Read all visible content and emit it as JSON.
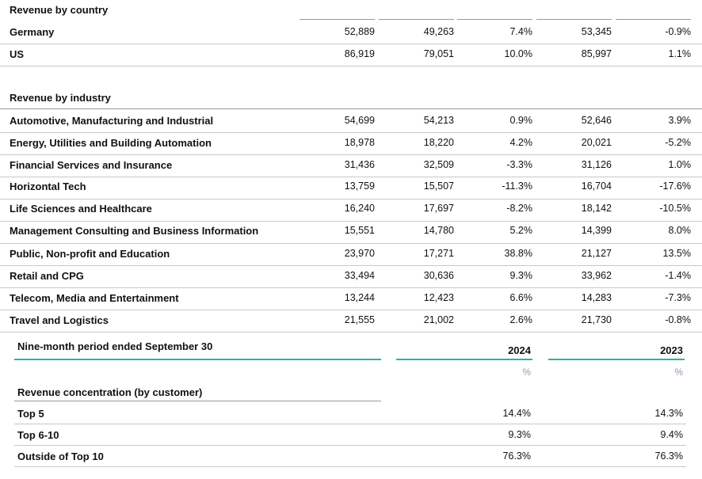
{
  "country": {
    "title": "Revenue by country",
    "rows": [
      {
        "label": "Germany",
        "v": [
          "52,889",
          "49,263",
          "7.4%",
          "53,345",
          "-0.9%"
        ]
      },
      {
        "label": "US",
        "v": [
          "86,919",
          "79,051",
          "10.0%",
          "85,997",
          "1.1%"
        ]
      }
    ]
  },
  "industry": {
    "title": "Revenue by industry",
    "rows": [
      {
        "label": "Automotive, Manufacturing and Industrial",
        "v": [
          "54,699",
          "54,213",
          "0.9%",
          "52,646",
          "3.9%"
        ]
      },
      {
        "label": "Energy, Utilities and Building Automation",
        "v": [
          "18,978",
          "18,220",
          "4.2%",
          "20,021",
          "-5.2%"
        ]
      },
      {
        "label": "Financial Services and Insurance",
        "v": [
          "31,436",
          "32,509",
          "-3.3%",
          "31,126",
          "1.0%"
        ]
      },
      {
        "label": "Horizontal Tech",
        "v": [
          "13,759",
          "15,507",
          "-11.3%",
          "16,704",
          "-17.6%"
        ]
      },
      {
        "label": "Life Sciences and Healthcare",
        "v": [
          "16,240",
          "17,697",
          "-8.2%",
          "18,142",
          "-10.5%"
        ]
      },
      {
        "label": "Management Consulting and Business Information",
        "v": [
          "15,551",
          "14,780",
          "5.2%",
          "14,399",
          "8.0%"
        ]
      },
      {
        "label": "Public, Non-profit and Education",
        "v": [
          "23,970",
          "17,271",
          "38.8%",
          "21,127",
          "13.5%"
        ]
      },
      {
        "label": "Retail and CPG",
        "v": [
          "33,494",
          "30,636",
          "9.3%",
          "33,962",
          "-1.4%"
        ]
      },
      {
        "label": "Telecom, Media and Entertainment",
        "v": [
          "13,244",
          "12,423",
          "6.6%",
          "14,283",
          "-7.3%"
        ]
      },
      {
        "label": "Travel and Logistics",
        "v": [
          "21,555",
          "21,002",
          "2.6%",
          "21,730",
          "-0.8%"
        ]
      }
    ]
  },
  "concentration": {
    "period_title": "Nine-month period ended September 30",
    "years": [
      "2024",
      "2023"
    ],
    "units": [
      "%",
      "%"
    ],
    "title": "Revenue concentration (by customer)",
    "rows": [
      {
        "label": "Top 5",
        "v": [
          "14.4%",
          "14.3%"
        ]
      },
      {
        "label": "Top 6-10",
        "v": [
          "9.3%",
          "9.4%"
        ]
      },
      {
        "label": "Outside of Top 10",
        "v": [
          "76.3%",
          "76.3%"
        ]
      }
    ]
  }
}
